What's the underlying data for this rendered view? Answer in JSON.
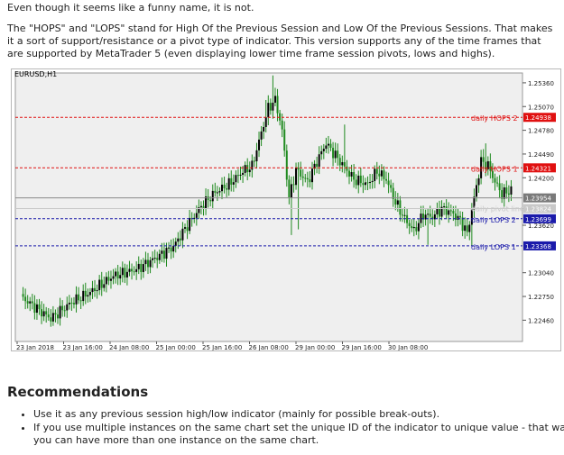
{
  "intro": {
    "line1": "Even though it seems like a funny name, it is not.",
    "para2": "The \"HOPS\" and \"LOPS\" stand for High Of the Previous Session and Low Of the Previous Sessions. That makes it a sort of support/resistance or a pivot type of indicator. This version supports any of the time frames that are supported by MetaTrader 5 (even displaying lower time frame session pivots, lows and highs)."
  },
  "chart": {
    "symbol_label": "EURUSD,H1",
    "y_ticks": [
      "1.25360",
      "1.25070",
      "1.24780",
      "1.24490",
      "1.24200",
      "1.23620",
      "1.23040",
      "1.22750",
      "1.22460"
    ],
    "x_ticks": [
      "23 Jan 2018",
      "23 Jan 16:00",
      "24 Jan 08:00",
      "25 Jan 00:00",
      "25 Jan 16:00",
      "26 Jan 08:00",
      "29 Jan 00:00",
      "29 Jan 16:00",
      "30 Jan 08:00"
    ],
    "price_badges": [
      {
        "value": "1.24938",
        "color": "#e01010"
      },
      {
        "value": "1.24321",
        "color": "#e01010"
      },
      {
        "value": "1.23954",
        "color": "#7a7a7a"
      },
      {
        "value": "1.23824",
        "color": "#c8c8c8"
      },
      {
        "value": "1.23699",
        "color": "#1a1aaa"
      },
      {
        "value": "1.23368",
        "color": "#1a1aaa"
      }
    ],
    "levels": [
      {
        "label": "daily HOPS 2",
        "value": 1.24938,
        "color": "#e01010",
        "style": "dashed"
      },
      {
        "label": "daily HOPS 1",
        "value": 1.24321,
        "color": "#e01010",
        "style": "dashed"
      },
      {
        "label": "daily pivot line",
        "value": 1.23824,
        "color": "#c8c8c8",
        "style": "solid"
      },
      {
        "label": "daily LOPS 2",
        "value": 1.23699,
        "color": "#1a1aaa",
        "style": "dashed"
      },
      {
        "label": "daily LOPS 1",
        "value": 1.23368,
        "color": "#1a1aaa",
        "style": "dashed"
      }
    ],
    "current_price": 1.23954,
    "candle_color": "#1f8a1f"
  },
  "recommendations": {
    "title": "Recommendations",
    "items": [
      "Use it as any previous session high/low indicator (mainly for possible break-outs).",
      "If you use multiple instances on the same chart set the unique ID of the indicator to unique value - that way you can have more than one instance on the same chart."
    ]
  }
}
